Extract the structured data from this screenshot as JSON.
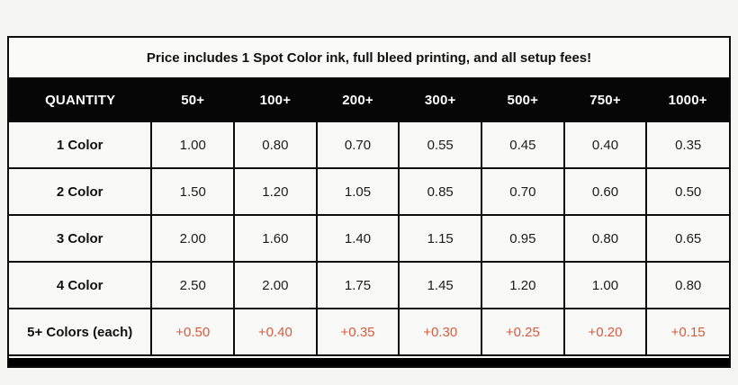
{
  "chart_data": {
    "type": "table",
    "title": "Price includes 1 Spot Color ink, full bleed printing, and all setup fees!",
    "columns": [
      "QUANTITY",
      "50+",
      "100+",
      "200+",
      "300+",
      "500+",
      "750+",
      "1000+"
    ],
    "rows": [
      {
        "label": "1 Color",
        "accent": false,
        "values": [
          "1.00",
          "0.80",
          "0.70",
          "0.55",
          "0.45",
          "0.40",
          "0.35"
        ]
      },
      {
        "label": "2 Color",
        "accent": false,
        "values": [
          "1.50",
          "1.20",
          "1.05",
          "0.85",
          "0.70",
          "0.60",
          "0.50"
        ]
      },
      {
        "label": "3 Color",
        "accent": false,
        "values": [
          "2.00",
          "1.60",
          "1.40",
          "1.15",
          "0.95",
          "0.80",
          "0.65"
        ]
      },
      {
        "label": "4 Color",
        "accent": false,
        "values": [
          "2.50",
          "2.00",
          "1.75",
          "1.45",
          "1.20",
          "1.00",
          "0.80"
        ]
      },
      {
        "label": "5+ Colors (each)",
        "accent": true,
        "values": [
          "+0.50",
          "+0.40",
          "+0.35",
          "+0.30",
          "+0.25",
          "+0.20",
          "+0.15"
        ]
      }
    ],
    "layout": {
      "legend": "none",
      "grid": "on"
    }
  },
  "colors": {
    "accent_text": "#d75b3d",
    "header_bg": "#060606",
    "header_text": "#ffffff",
    "border": "#0d0d0d",
    "cell_bg": "#f9f9f7",
    "page_bg": "#f5f5f3"
  }
}
